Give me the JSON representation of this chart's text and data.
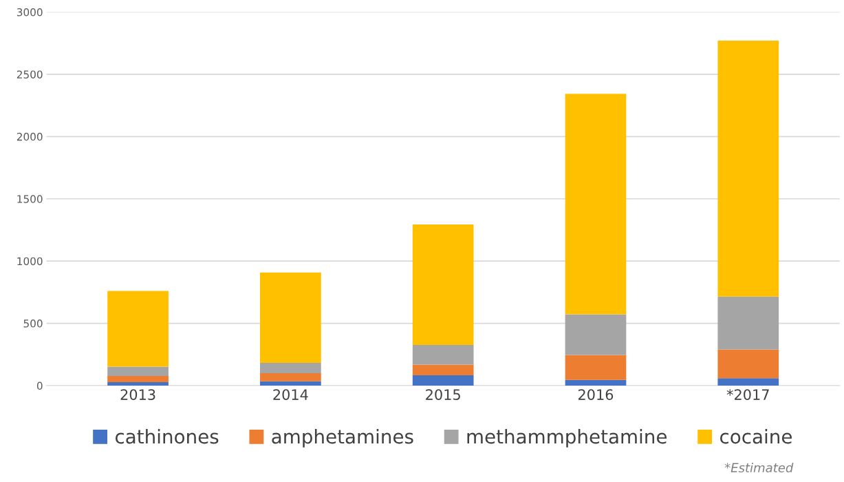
{
  "chart_data": {
    "type": "bar",
    "stacked": true,
    "categories": [
      "2013",
      "2014",
      "2015",
      "2016",
      "*2017"
    ],
    "series": [
      {
        "name": "cathinones",
        "color": "#4472c4",
        "values": [
          28,
          35,
          83,
          46,
          60
        ]
      },
      {
        "name": "amphetamines",
        "color": "#ed7d31",
        "values": [
          50,
          65,
          85,
          200,
          230
        ]
      },
      {
        "name": "methammphetamine",
        "color": "#a5a5a5",
        "values": [
          74,
          83,
          158,
          326,
          425
        ]
      },
      {
        "name": "cocaine",
        "color": "#ffc000",
        "values": [
          609,
          725,
          968,
          1772,
          2055
        ]
      }
    ],
    "ylim": [
      0,
      3000
    ],
    "yticks": [
      0,
      500,
      1000,
      1500,
      2000,
      2500,
      3000
    ],
    "grid": "y",
    "legend": "bottom",
    "annotations": [
      "*Estimated"
    ]
  }
}
